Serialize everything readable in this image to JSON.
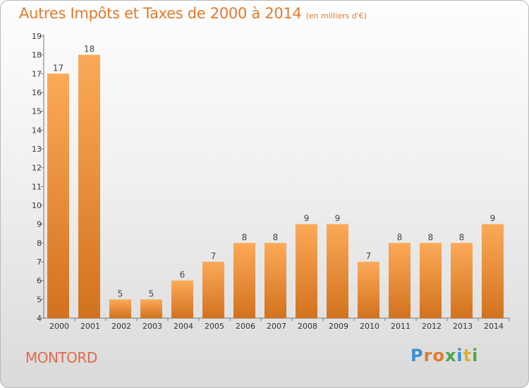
{
  "title": "Autres Impôts et Taxes de 2000 à 2014",
  "subtitle": "(en milliers d'€)",
  "city": "MONTORD",
  "logo": {
    "text": "Proxiti",
    "colors": [
      "#3d8fd0",
      "#e07a2e",
      "#e07a2e",
      "#49a84a",
      "#3d8fd0",
      "#e0b02e",
      "#49a84a"
    ]
  },
  "colors": {
    "bar_light": "#fbaa58",
    "bar_dark": "#d2721e",
    "title": "#e07a2e",
    "city": "#e06a4f"
  },
  "chart_data": {
    "type": "bar",
    "categories": [
      "2000",
      "2001",
      "2002",
      "2003",
      "2004",
      "2005",
      "2006",
      "2007",
      "2008",
      "2009",
      "2010",
      "2011",
      "2012",
      "2013",
      "2014"
    ],
    "values": [
      17,
      18,
      5,
      5,
      6,
      7,
      8,
      8,
      9,
      9,
      7,
      8,
      8,
      8,
      9
    ],
    "ylim": [
      4,
      19
    ],
    "yticks": [
      4,
      5,
      6,
      7,
      8,
      9,
      10,
      11,
      12,
      13,
      14,
      15,
      16,
      17,
      18,
      19
    ],
    "grid": false
  }
}
